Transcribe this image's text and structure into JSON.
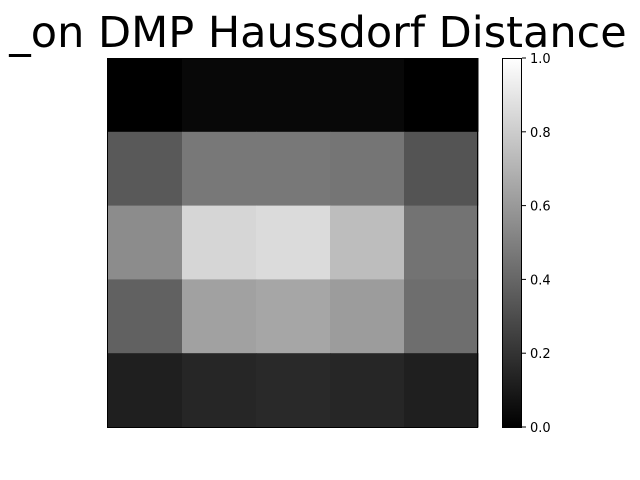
{
  "chart_data": {
    "type": "heatmap",
    "title": "_on DMP Haussdorf Distance",
    "colormap": "gray",
    "vmin": 0.0,
    "vmax": 1.0,
    "values": [
      [
        0.0,
        0.03,
        0.03,
        0.03,
        0.0
      ],
      [
        0.35,
        0.47,
        0.47,
        0.46,
        0.33
      ],
      [
        0.55,
        0.84,
        0.86,
        0.74,
        0.45
      ],
      [
        0.38,
        0.63,
        0.65,
        0.61,
        0.43
      ],
      [
        0.12,
        0.15,
        0.16,
        0.15,
        0.12
      ]
    ],
    "colorbar": {
      "ticks": [
        0.0,
        0.2,
        0.4,
        0.6,
        0.8,
        1.0
      ],
      "tick_labels": [
        "0.0",
        "0.2",
        "0.4",
        "0.6",
        "0.8",
        "1.0"
      ]
    }
  }
}
